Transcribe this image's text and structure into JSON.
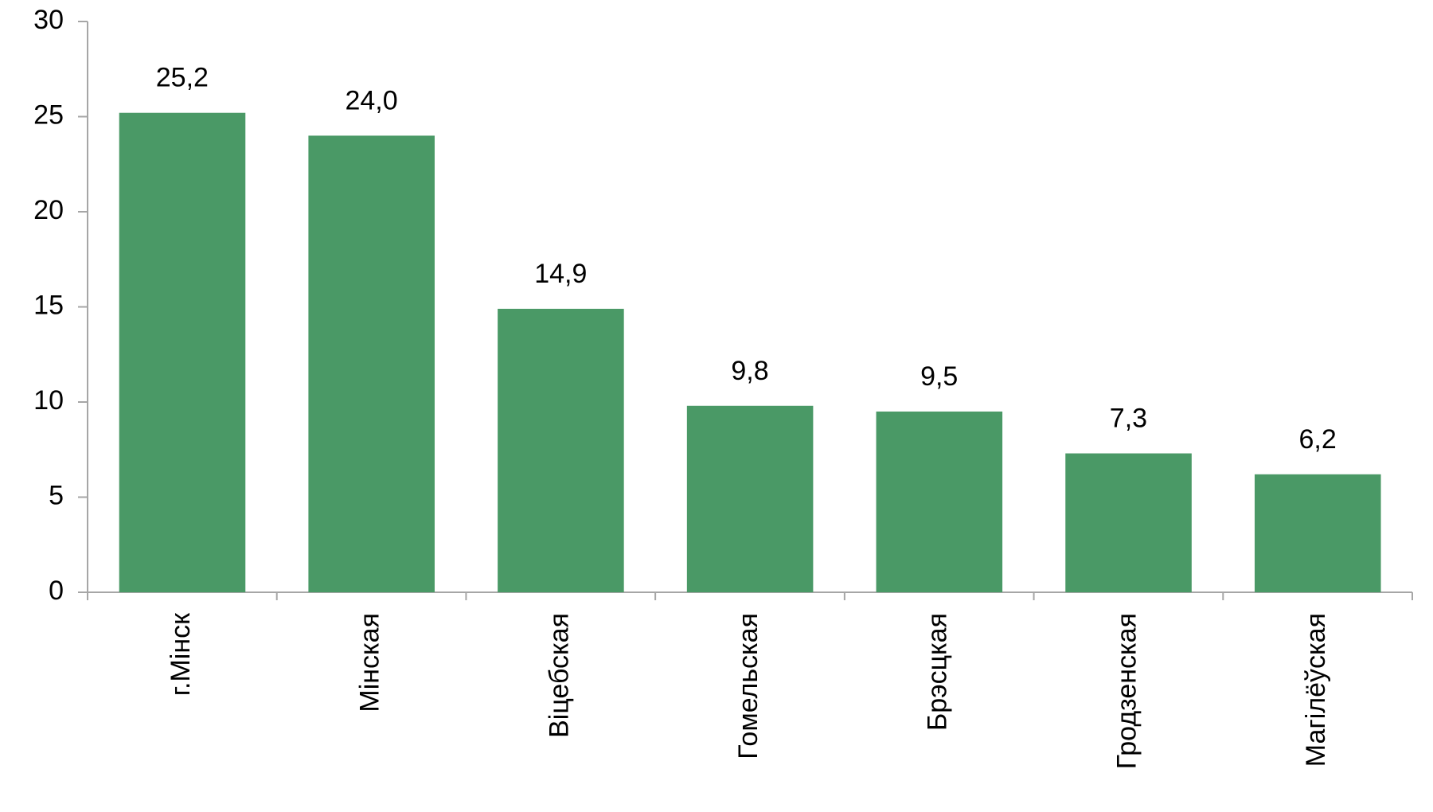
{
  "chart_data": {
    "type": "bar",
    "categories": [
      "г.Мінск",
      "Мінская",
      "Віцебская",
      "Гомельская",
      "Брэсцкая",
      "Гродзенская",
      "Магілёўская"
    ],
    "values": [
      25.2,
      24.0,
      14.9,
      9.8,
      9.5,
      7.3,
      6.2
    ],
    "value_labels": [
      "25,2",
      "24,0",
      "14,9",
      "9,8",
      "9,5",
      "7,3",
      "6,2"
    ],
    "color": "#4a9966",
    "ylim": [
      0,
      30
    ],
    "yticks": [
      0,
      5,
      10,
      15,
      20,
      25,
      30
    ],
    "grid": false
  }
}
